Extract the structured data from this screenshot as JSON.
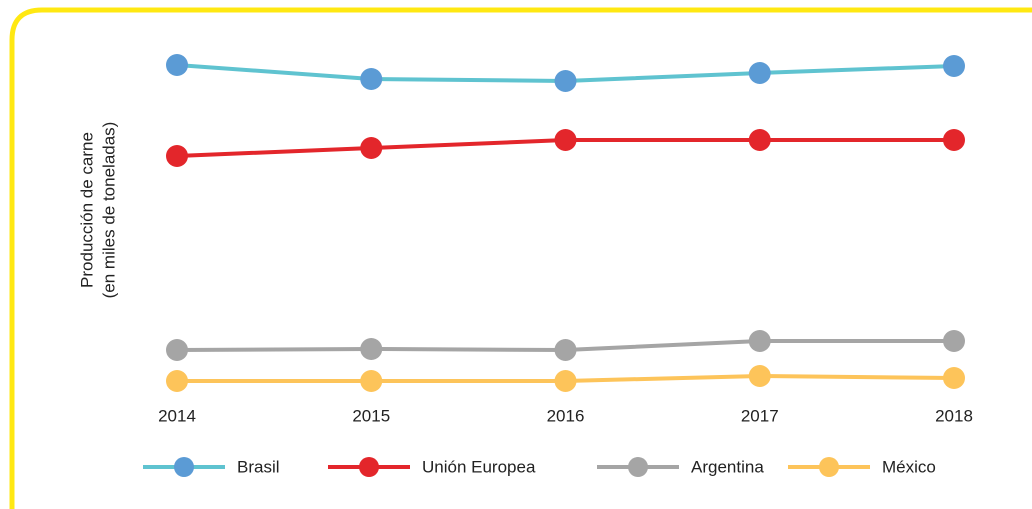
{
  "chart_data": {
    "type": "line",
    "ylabel": [
      "Producción de carne",
      "(en miles de toneladas)"
    ],
    "categories": [
      "2014",
      "2015",
      "2016",
      "2017",
      "2018"
    ],
    "ylim": [
      1500,
      8700
    ],
    "series": [
      {
        "name": "Brasil",
        "color": "#5fc3d0",
        "marker_color": "#5b9bd5",
        "values": [
          8200,
          7920,
          7880,
          8040,
          8180
        ]
      },
      {
        "name": "Unión Europea",
        "color": "#e3262b",
        "marker_color": "#e3262b",
        "values": [
          6380,
          6540,
          6700,
          6700,
          6700
        ]
      },
      {
        "name": "Argentina",
        "color": "#a5a5a5",
        "marker_color": "#a5a5a5",
        "values": [
          2500,
          2520,
          2500,
          2680,
          2680
        ]
      },
      {
        "name": "México",
        "color": "#fdc45a",
        "marker_color": "#fdc45a",
        "values": [
          1880,
          1880,
          1880,
          1980,
          1940
        ]
      }
    ]
  }
}
